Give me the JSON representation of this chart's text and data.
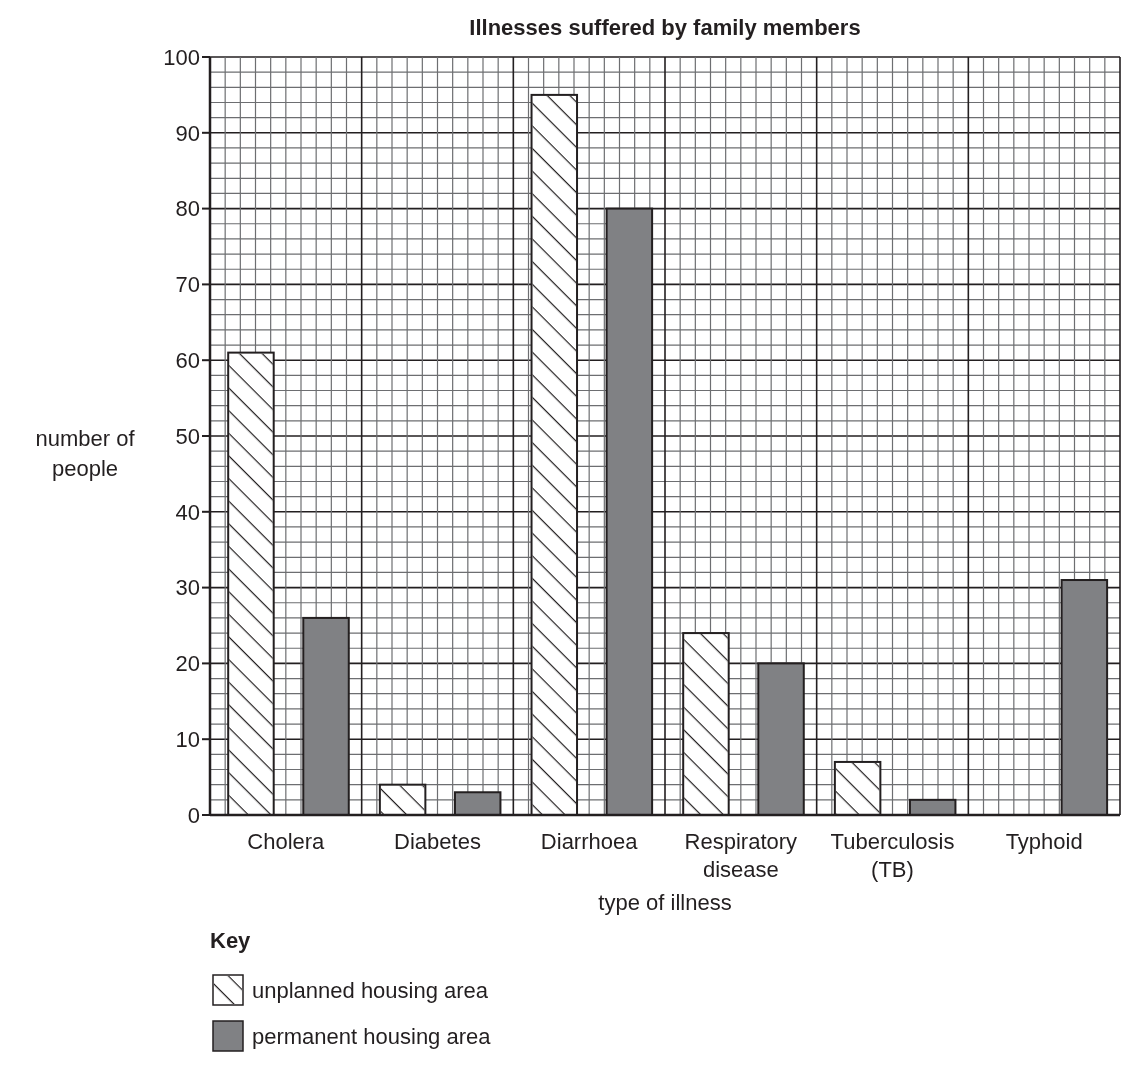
{
  "chart_data": {
    "type": "bar",
    "title": "Illnesses suffered by family members",
    "xlabel": "type of illness",
    "ylabel": "number of people",
    "legend_title": "Key",
    "categories": [
      "Cholera",
      "Diabetes",
      "Diarrhoea",
      "Respiratory disease",
      "Tuberculosis (TB)",
      "Typhoid"
    ],
    "series": [
      {
        "name": "unplanned housing area",
        "color": "#ffffff",
        "values": [
          61,
          4,
          95,
          24,
          7,
          0
        ]
      },
      {
        "name": "permanent housing area",
        "color": "#808184",
        "values": [
          26,
          3,
          80,
          20,
          2,
          31
        ]
      }
    ],
    "ylim": [
      0,
      100
    ],
    "yticks": [
      0,
      10,
      20,
      30,
      40,
      50,
      60,
      70,
      80,
      90,
      100
    ],
    "grid": true,
    "legend": "bottom left"
  }
}
